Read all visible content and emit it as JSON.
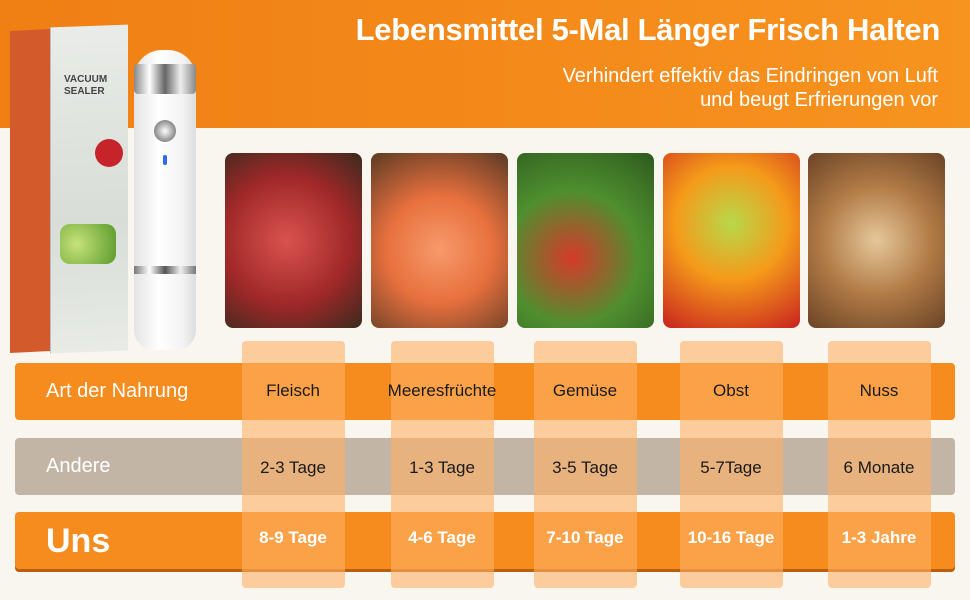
{
  "header": {
    "title": "Lebensmittel 5-Mal Länger Frisch Halten",
    "subtitle_line1": "Verhindert effektiv das Eindringen von Luft",
    "subtitle_line2": "und beugt Erfrierungen vor"
  },
  "product": {
    "box_text": "VACUUM SEALER"
  },
  "colors": {
    "orange": "#f68b1e",
    "gray": "#c3b5a5",
    "background": "#f8f6ef"
  },
  "table": {
    "row_labels": [
      "Art der Nahrung",
      "Andere",
      "Uns"
    ],
    "columns": [
      {
        "food": "Fleisch",
        "other": "2-3 Tage",
        "us": "8-9 Tage"
      },
      {
        "food": "Meeresfrüchte",
        "other": "1-3 Tage",
        "us": "4-6 Tage"
      },
      {
        "food": "Gemüse",
        "other": "3-5 Tage",
        "us": "7-10 Tage"
      },
      {
        "food": "Obst",
        "other": "5-7Tage",
        "us": "10-16 Tage"
      },
      {
        "food": "Nuss",
        "other": "6 Monate",
        "us": "1-3 Jahre"
      }
    ]
  }
}
